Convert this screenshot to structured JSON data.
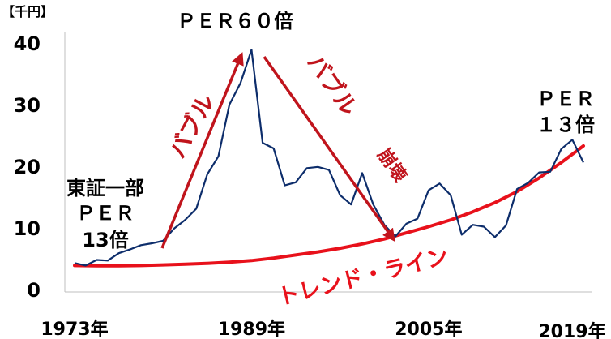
{
  "chart_data": {
    "type": "line",
    "unit_label": "【千円】",
    "ylim": [
      0,
      40
    ],
    "y_ticks": [
      0,
      10,
      20,
      30,
      40
    ],
    "x_range": [
      1973,
      2019
    ],
    "x_ticks": [
      {
        "year": 1973,
        "label": "1973年"
      },
      {
        "year": 1989,
        "label": "1989年"
      },
      {
        "year": 2005,
        "label": "2005年"
      },
      {
        "year": 2019,
        "label": "2019年"
      }
    ],
    "series": [
      {
        "color": "#0d2d6b",
        "x": [
          1973,
          1974,
          1975,
          1976,
          1977,
          1978,
          1979,
          1980,
          1981,
          1982,
          1983,
          1984,
          1985,
          1986,
          1987,
          1988,
          1989,
          1990,
          1991,
          1992,
          1993,
          1994,
          1995,
          1996,
          1997,
          1998,
          1999,
          2000,
          2001,
          2002,
          2003,
          2004,
          2005,
          2006,
          2007,
          2008,
          2009,
          2010,
          2011,
          2012,
          2013,
          2014,
          2015,
          2016,
          2017,
          2018,
          2019
        ],
        "values": [
          4.3,
          3.9,
          4.8,
          4.7,
          5.9,
          6.5,
          7.2,
          7.5,
          7.9,
          9.9,
          11.3,
          13.1,
          18.7,
          21.6,
          30.0,
          33.5,
          38.9,
          23.8,
          22.9,
          16.9,
          17.4,
          19.7,
          19.9,
          19.4,
          15.3,
          13.8,
          18.9,
          13.8,
          10.5,
          8.6,
          10.7,
          11.5,
          16.1,
          17.2,
          15.3,
          8.9,
          10.5,
          10.2,
          8.5,
          10.4,
          16.3,
          17.3,
          19.0,
          19.1,
          22.8,
          24.3,
          20.6
        ]
      },
      {
        "name": "トレンド・ライン",
        "color": "#e8111b",
        "x": [
          1973,
          1975,
          1977,
          1979,
          1981,
          1983,
          1985,
          1987,
          1989,
          1991,
          1993,
          1995,
          1997,
          1999,
          2001,
          2003,
          2005,
          2007,
          2009,
          2011,
          2013,
          2015,
          2017,
          2019
        ],
        "values": [
          3.9,
          3.85,
          3.85,
          3.9,
          4.0,
          4.1,
          4.25,
          4.45,
          4.7,
          5.1,
          5.6,
          6.1,
          6.7,
          7.4,
          8.2,
          9.2,
          10.2,
          11.3,
          12.6,
          14.1,
          15.9,
          18.1,
          20.6,
          23.3
        ]
      }
    ],
    "annotations": {
      "per60": "ＰＥＲ６０倍",
      "left_group": [
        "東証一部",
        "ＰＥＲ",
        "13倍"
      ],
      "right_group": [
        "ＰＥＲ",
        "１３倍"
      ],
      "bubble": "バブル",
      "bubble_collapse_1": "バブル",
      "bubble_collapse_2": "崩壊",
      "trend_line": "トレンド・ライン"
    },
    "grid": false,
    "legend": "none"
  }
}
